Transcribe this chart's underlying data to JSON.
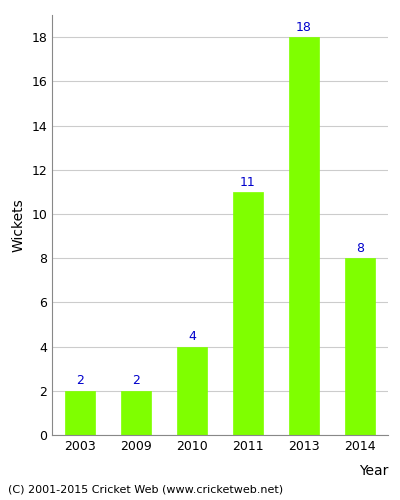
{
  "years": [
    "2003",
    "2009",
    "2010",
    "2011",
    "2013",
    "2014"
  ],
  "values": [
    2,
    2,
    4,
    11,
    18,
    8
  ],
  "bar_color": "#7fff00",
  "bar_edge_color": "#7fff00",
  "label_color": "#0000cc",
  "ylabel": "Wickets",
  "xlabel": "Year",
  "ylim": [
    0,
    19
  ],
  "yticks": [
    0,
    2,
    4,
    6,
    8,
    10,
    12,
    14,
    16,
    18
  ],
  "footnote": "(C) 2001-2015 Cricket Web (www.cricketweb.net)",
  "footnote_fontsize": 8,
  "label_fontsize": 9,
  "tick_fontsize": 9,
  "axis_label_fontsize": 10,
  "background_color": "#ffffff",
  "grid_color": "#cccccc",
  "bar_width": 0.55
}
